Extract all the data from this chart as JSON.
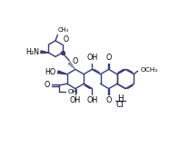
{
  "bg_color": "#ffffff",
  "line_color": "#3a3a7a",
  "line_width": 1.0,
  "font_size": 5.8,
  "figsize": [
    2.08,
    1.74
  ],
  "dpi": 100,
  "xlim": [
    0,
    10.4
  ],
  "ylim": [
    0,
    8.7
  ]
}
